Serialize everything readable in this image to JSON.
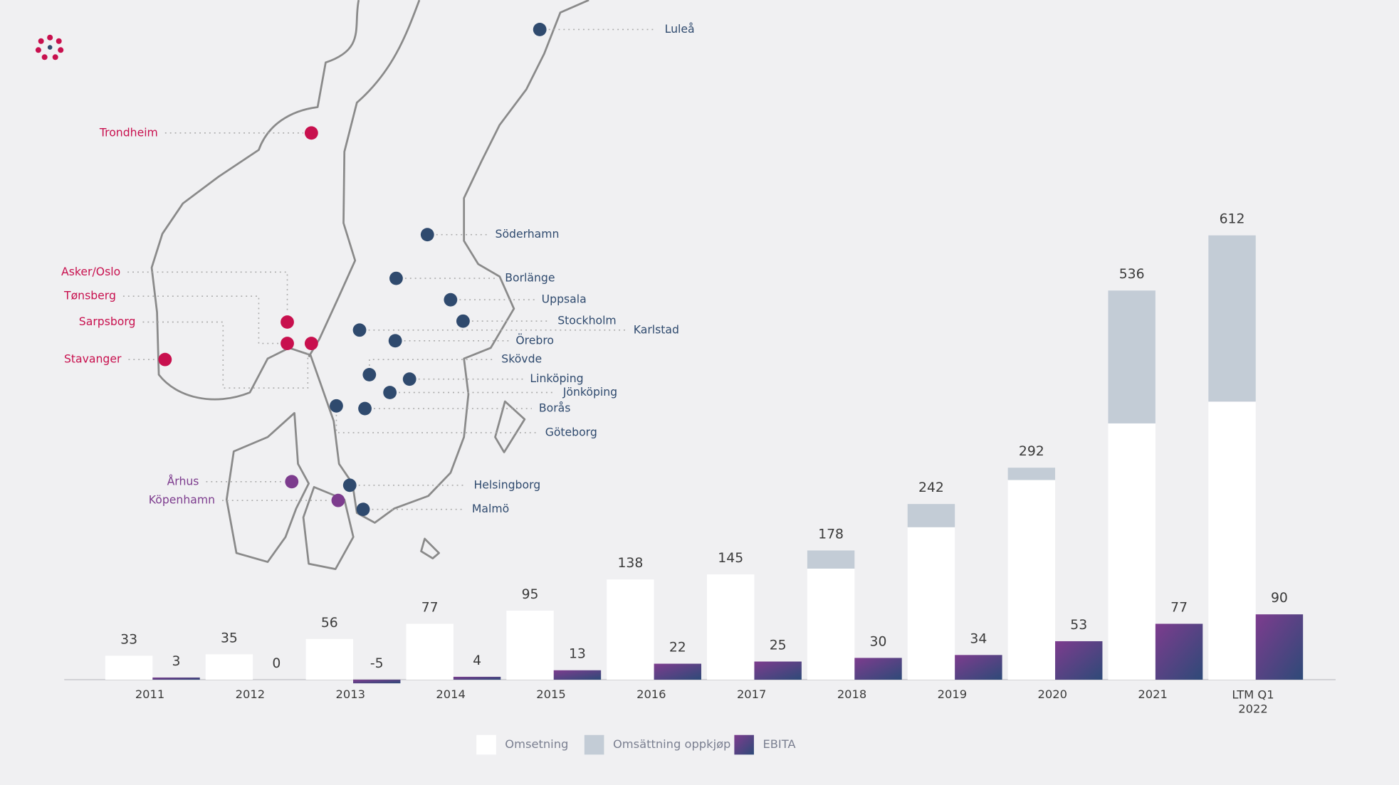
{
  "chart_data": {
    "type": "bar",
    "categories": [
      "2011",
      "2012",
      "2013",
      "2014",
      "2015",
      "2016",
      "2017",
      "2018",
      "2019",
      "2020",
      "2021",
      "LTM Q1\n2022"
    ],
    "series": [
      {
        "name": "Omsetning",
        "color": "#ffffff",
        "stack": "revenue",
        "values": [
          33,
          35,
          56,
          77,
          95,
          138,
          145,
          153,
          210,
          275,
          353,
          383
        ]
      },
      {
        "name": "Omsättning oppkjøp",
        "color": "#c3ccd6",
        "stack": "revenue",
        "values": [
          0,
          0,
          0,
          0,
          0,
          0,
          0,
          25,
          32,
          17,
          183,
          229
        ]
      },
      {
        "name": "EBITA",
        "color": "#7d3c8e",
        "stack": "ebita",
        "values": [
          3,
          0,
          -5,
          4,
          13,
          22,
          25,
          30,
          34,
          53,
          77,
          90
        ]
      }
    ],
    "totals": [
      33,
      35,
      56,
      77,
      95,
      138,
      145,
      178,
      242,
      292,
      536,
      612
    ],
    "ylim": [
      -8,
      620
    ]
  },
  "map": {
    "cities": [
      {
        "name": "Luleå",
        "color": "#2f4a6e"
      },
      {
        "name": "Trondheim",
        "color": "#c8104e"
      },
      {
        "name": "Söderhamn",
        "color": "#2f4a6e"
      },
      {
        "name": "Borlänge",
        "color": "#2f4a6e"
      },
      {
        "name": "Uppsala",
        "color": "#2f4a6e"
      },
      {
        "name": "Stockholm",
        "color": "#2f4a6e"
      },
      {
        "name": "Karlstad",
        "color": "#2f4a6e"
      },
      {
        "name": "Örebro",
        "color": "#2f4a6e"
      },
      {
        "name": "Skövde",
        "color": "#2f4a6e"
      },
      {
        "name": "Linköping",
        "color": "#2f4a6e"
      },
      {
        "name": "Jönköping",
        "color": "#2f4a6e"
      },
      {
        "name": "Borås",
        "color": "#2f4a6e"
      },
      {
        "name": "Göteborg",
        "color": "#2f4a6e"
      },
      {
        "name": "Helsingborg",
        "color": "#2f4a6e"
      },
      {
        "name": "Malmö",
        "color": "#2f4a6e"
      },
      {
        "name": "Asker/Oslo",
        "color": "#c8104e"
      },
      {
        "name": "Tønsberg",
        "color": "#c8104e"
      },
      {
        "name": "Sarpsborg",
        "color": "#c8104e"
      },
      {
        "name": "Stavanger",
        "color": "#c8104e"
      },
      {
        "name": "Århus",
        "color": "#7d3c8e"
      },
      {
        "name": "Köpenhamn",
        "color": "#7d3c8e"
      }
    ]
  }
}
